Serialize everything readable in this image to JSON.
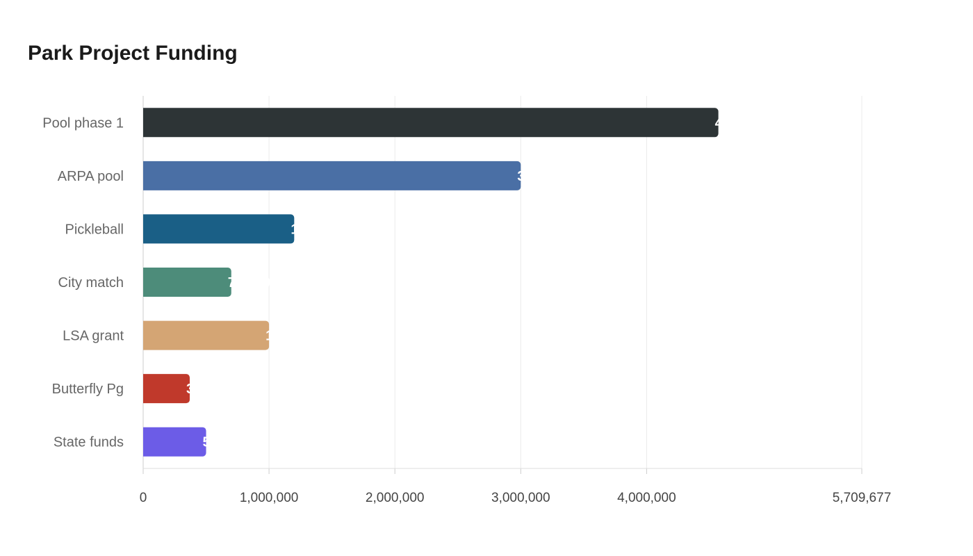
{
  "chart_data": {
    "type": "bar",
    "orientation": "horizontal",
    "title": "Park Project Funding",
    "xlabel": "",
    "ylabel": "",
    "xlim": [
      0,
      5709677
    ],
    "x_ticks": [
      "0",
      "1,000,000",
      "2,000,000",
      "3,000,000",
      "4,000,000",
      "5,709,677"
    ],
    "grid": true,
    "categories": [
      "Pool phase 1",
      "ARPA pool",
      "Pickleball",
      "City match",
      "LSA grant",
      "Butterfly Pg",
      "State funds"
    ],
    "values": [
      4570000,
      3000000,
      1200000,
      700000,
      1000000,
      370000,
      500000
    ],
    "colors": [
      "#2d3436",
      "#4a6fa5",
      "#1a5f86",
      "#4d8c7a",
      "#d4a574",
      "#c0392b",
      "#6c5ce7"
    ]
  }
}
